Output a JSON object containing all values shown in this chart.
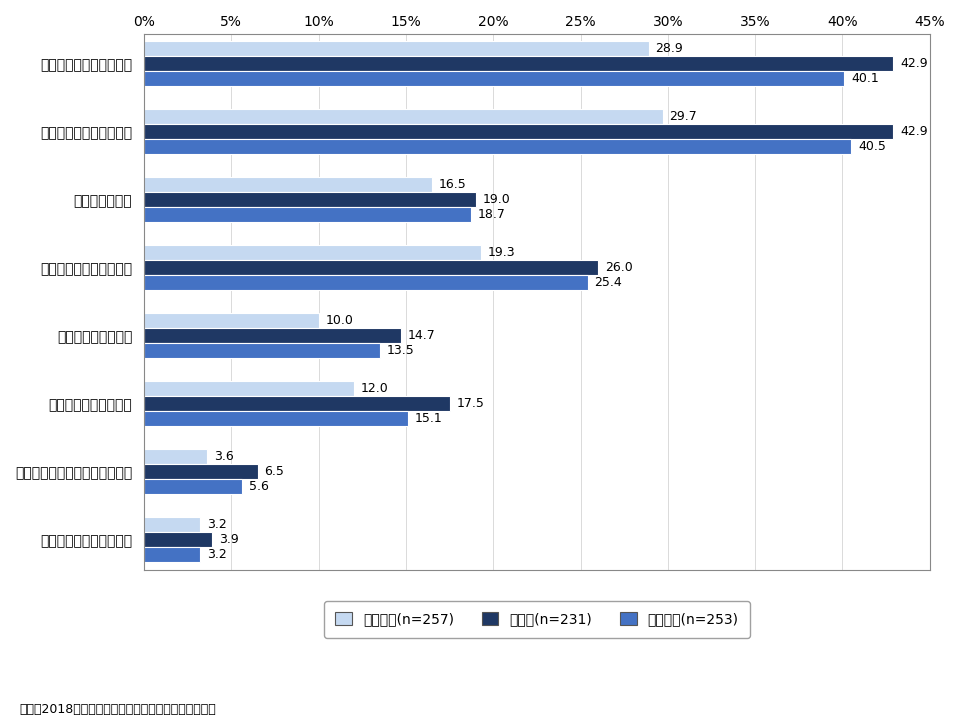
{
  "categories": [
    "家族との交流が密になる",
    "友人との交流が密になる",
    "交際範囲広がる",
    "旧友との交流が復活する",
    "新しい友達ができる",
    "意外な側面が分かった",
    "家族間で知らないことが増える",
    "人間関係に悪影響が出る"
  ],
  "series": {
    "ケータイ(n=257)": [
      28.9,
      29.7,
      16.5,
      19.3,
      10.0,
      12.0,
      3.6,
      3.2
    ],
    "スマホ(n=231)": [
      42.9,
      42.9,
      19.0,
      26.0,
      14.7,
      17.5,
      6.5,
      3.9
    ],
    "パソコン(n=253)": [
      40.1,
      40.5,
      18.7,
      25.4,
      13.5,
      15.1,
      5.6,
      3.2
    ]
  },
  "colors": {
    "ケータイ(n=257)": "#c5d9f1",
    "スマホ(n=231)": "#1f3864",
    "パソコン(n=253)": "#4472c4"
  },
  "xlim": [
    0,
    45
  ],
  "xticks": [
    0,
    5,
    10,
    15,
    20,
    25,
    30,
    35,
    40,
    45
  ],
  "source_text": "出所：2018年一般向けモバイル動向調査（訪問留置）",
  "bar_height": 0.22,
  "tick_fontsize": 10,
  "label_fontsize": 9
}
